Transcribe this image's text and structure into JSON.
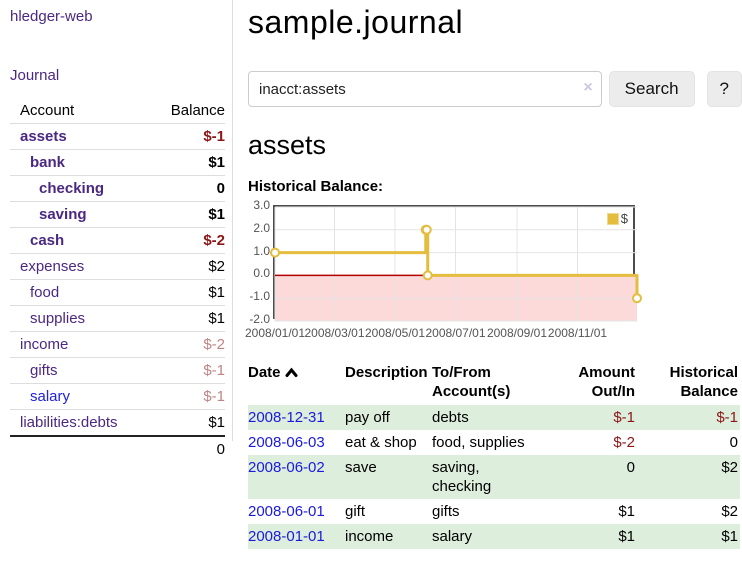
{
  "colors": {
    "link_purple": "#4b2882",
    "link_blue": "#2222dd",
    "negative_strong": "#8e1616",
    "negative_muted": "#c08484",
    "row_green": "#ddeedd",
    "chart_line_gold": "#e5bd3e",
    "chart_negative_fill": "#fcdada",
    "chart_zero_line": "#b30000",
    "chart_grid": "#e4e4e4",
    "chart_frame": "#4c4c4c"
  },
  "sidebar": {
    "app_title": "hledger-web",
    "nav": {
      "journal": "Journal"
    },
    "accounts_table": {
      "col_account": "Account",
      "col_balance": "Balance",
      "rows": [
        {
          "name": "assets",
          "balance": "$-1"
        },
        {
          "name": "bank",
          "balance": "$1"
        },
        {
          "name": "checking",
          "balance": "0"
        },
        {
          "name": "saving",
          "balance": "$1"
        },
        {
          "name": "cash",
          "balance": "$-2"
        },
        {
          "name": "expenses",
          "balance": "$2"
        },
        {
          "name": "food",
          "balance": "$1"
        },
        {
          "name": "supplies",
          "balance": "$1"
        },
        {
          "name": "income",
          "balance": "$-2"
        },
        {
          "name": "gifts",
          "balance": "$-1"
        },
        {
          "name": "salary",
          "balance": "$-1"
        },
        {
          "name": "liabilities:debts",
          "balance": "$1"
        }
      ],
      "total": "0"
    }
  },
  "main": {
    "journal_title": "sample.journal",
    "search": {
      "value": "inacct:assets",
      "clear_icon": "×",
      "search_button": "Search",
      "help_button": "?"
    },
    "account_heading": "assets",
    "chart_heading": "Historical Balance:"
  },
  "chart_data": {
    "type": "line",
    "title": "Historical Balance",
    "series": [
      {
        "name": "$",
        "color": "#e5bd3e",
        "step": true,
        "points": [
          [
            "2008-01-01",
            1
          ],
          [
            "2008-06-01",
            2
          ],
          [
            "2008-06-02",
            2
          ],
          [
            "2008-06-03",
            0
          ],
          [
            "2008-12-31",
            -1
          ]
        ]
      }
    ],
    "xlim": [
      "2008-01-01",
      "2008-12-31"
    ],
    "ylim": [
      -2,
      3
    ],
    "y_ticks": [
      {
        "value": 3,
        "label": "3.0"
      },
      {
        "value": 2,
        "label": "2.0"
      },
      {
        "value": 1,
        "label": "1.0"
      },
      {
        "value": 0,
        "label": "0.0"
      },
      {
        "value": -1,
        "label": "-1.0"
      },
      {
        "value": -2,
        "label": "-2.0"
      }
    ],
    "x_ticks": [
      {
        "date": "2008-01-01",
        "label": "2008/01/01"
      },
      {
        "date": "2008-03-01",
        "label": "2008/03/01"
      },
      {
        "date": "2008-05-01",
        "label": "2008/05/01"
      },
      {
        "date": "2008-07-01",
        "label": "2008/07/01"
      },
      {
        "date": "2008-09-01",
        "label": "2008/09/01"
      },
      {
        "date": "2008-11-01",
        "label": "2008/11/01"
      }
    ],
    "grid": true,
    "negative_region": true,
    "legend": {
      "position": "top-right",
      "label": "$"
    }
  },
  "register": {
    "columns": {
      "date": "Date",
      "sort_icon": "chevron-up",
      "description": "Description",
      "account_line1": "To/From",
      "account_line2": "Account(s)",
      "amount_line1": "Amount",
      "amount_line2": "Out/In",
      "balance_line1": "Historical",
      "balance_line2": "Balance"
    },
    "rows": [
      {
        "date": "2008-12-31",
        "description": "pay off",
        "accounts": "debts",
        "amount": "$-1",
        "balance": "$-1"
      },
      {
        "date": "2008-06-03",
        "description": "eat & shop",
        "accounts": "food, supplies",
        "amount": "$-2",
        "balance": "0"
      },
      {
        "date": "2008-06-02",
        "description": "save",
        "accounts": "saving, checking",
        "amount": "0",
        "balance": "$2"
      },
      {
        "date": "2008-06-01",
        "description": "gift",
        "accounts": "gifts",
        "amount": "$1",
        "balance": "$2"
      },
      {
        "date": "2008-01-01",
        "description": "income",
        "accounts": "salary",
        "amount": "$1",
        "balance": "$1"
      }
    ]
  }
}
